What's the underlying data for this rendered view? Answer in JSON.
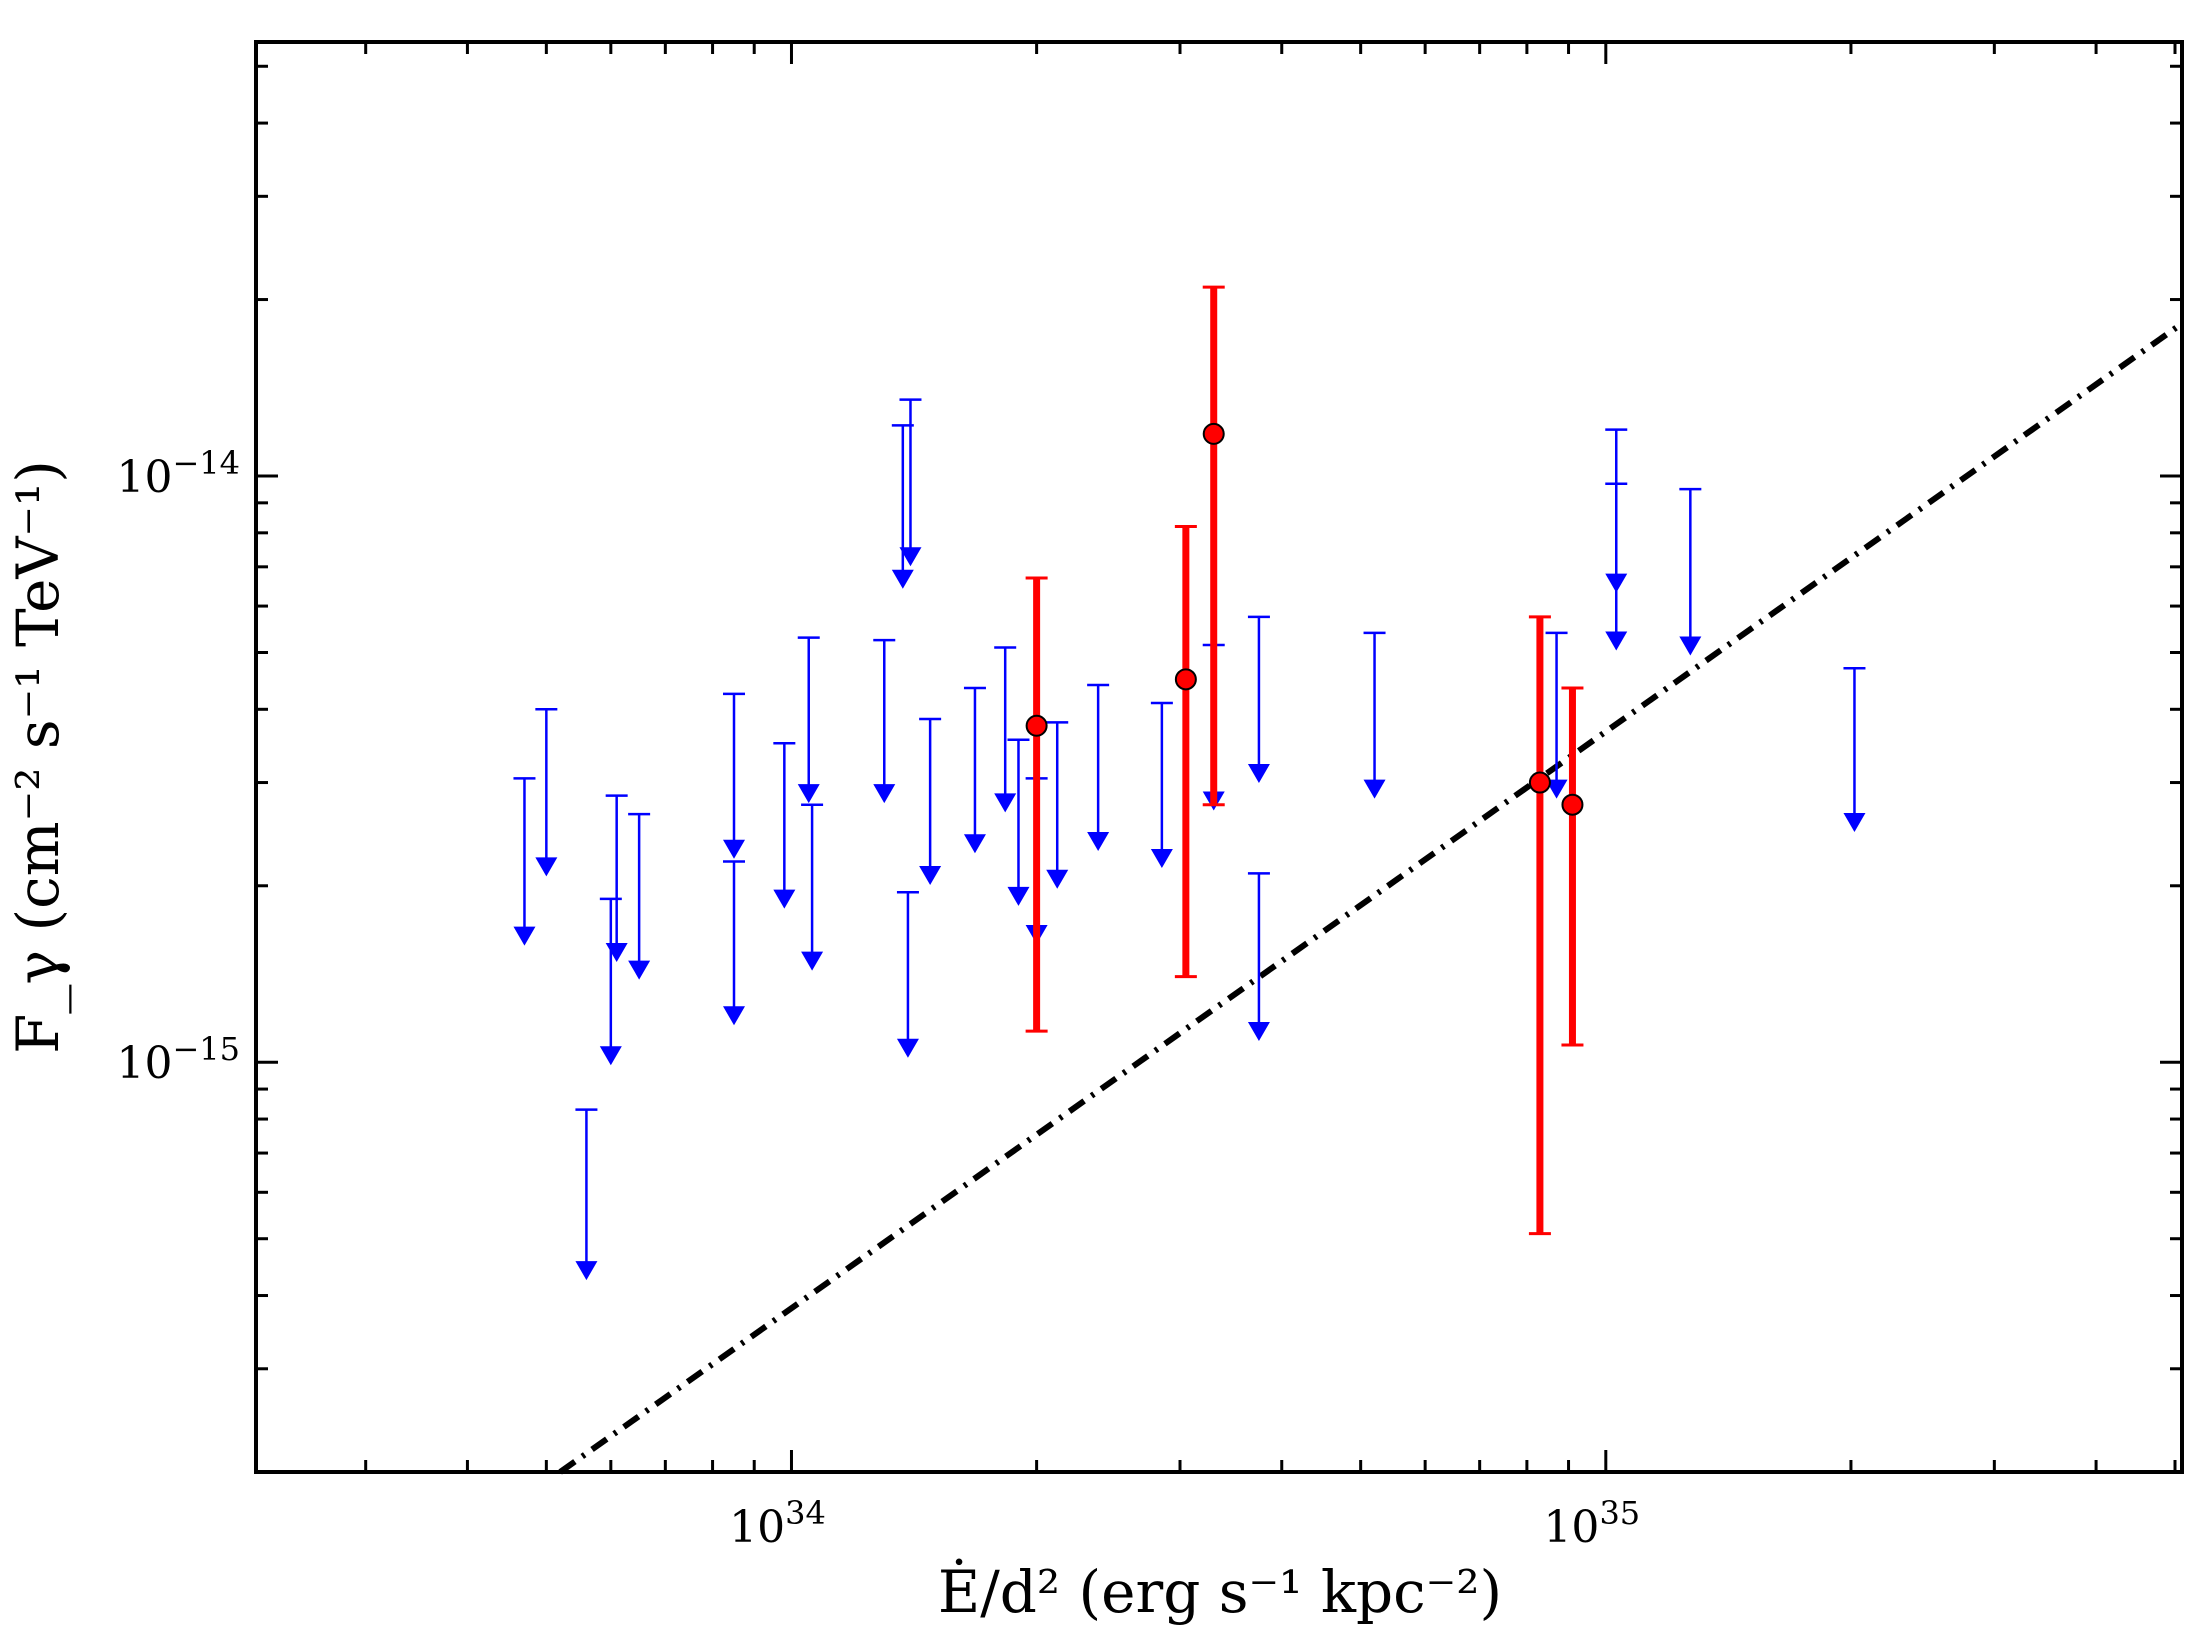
{
  "chart_data": {
    "type": "scatter",
    "title": "",
    "xlabel": "Ė/d² (erg s⁻¹ kpc⁻²)",
    "ylabel": "F_γ (cm⁻² s⁻¹ TeV⁻¹)",
    "xscale": "log",
    "yscale": "log",
    "xlim": [
      2.2e+33,
      5.1e+35
    ],
    "ylim": [
      2e-16,
      5.5e-14
    ],
    "x_tick_labels": [
      {
        "value": 1e+34,
        "base": "10",
        "exp": "34"
      },
      {
        "value": 1e+35,
        "base": "10",
        "exp": "35"
      }
    ],
    "y_tick_labels": [
      {
        "value": 1e-15,
        "base": "10",
        "exp": "−15"
      },
      {
        "value": 1e-14,
        "base": "10",
        "exp": "−14"
      }
    ],
    "grid": false,
    "legend": "none",
    "colors": {
      "upper_limits": "#0000ff",
      "detections": "#ff0000",
      "trend": "#000000"
    },
    "series": [
      {
        "kind": "upper_limits",
        "points": [
          {
            "x": 4.7e+33,
            "y_top": 3.05e-15,
            "y_arrow": 1.6e-15
          },
          {
            "x": 5e+33,
            "y_top": 4e-15,
            "y_arrow": 2.1e-15
          },
          {
            "x": 5.6e+33,
            "y_top": 8.3e-16,
            "y_arrow": 4.3e-16
          },
          {
            "x": 6e+33,
            "y_top": 1.9e-15,
            "y_arrow": 1e-15
          },
          {
            "x": 6.1e+33,
            "y_top": 2.85e-15,
            "y_arrow": 1.5e-15
          },
          {
            "x": 6.5e+33,
            "y_top": 2.65e-15,
            "y_arrow": 1.4e-15
          },
          {
            "x": 8.5e+33,
            "y_top": 4.25e-15,
            "y_arrow": 2.25e-15
          },
          {
            "x": 8.5e+33,
            "y_top": 2.2e-15,
            "y_arrow": 1.17e-15
          },
          {
            "x": 9.8e+33,
            "y_top": 3.5e-15,
            "y_arrow": 1.85e-15
          },
          {
            "x": 1.05e+34,
            "y_top": 5.3e-15,
            "y_arrow": 2.8e-15
          },
          {
            "x": 1.06e+34,
            "y_top": 2.75e-15,
            "y_arrow": 1.45e-15
          },
          {
            "x": 1.3e+34,
            "y_top": 5.25e-15,
            "y_arrow": 2.8e-15
          },
          {
            "x": 1.37e+34,
            "y_top": 1.22e-14,
            "y_arrow": 6.5e-15
          },
          {
            "x": 1.4e+34,
            "y_top": 1.35e-14,
            "y_arrow": 7.1e-15
          },
          {
            "x": 1.39e+34,
            "y_top": 1.95e-15,
            "y_arrow": 1.03e-15
          },
          {
            "x": 1.48e+34,
            "y_top": 3.85e-15,
            "y_arrow": 2.03e-15
          },
          {
            "x": 1.68e+34,
            "y_top": 4.35e-15,
            "y_arrow": 2.3e-15
          },
          {
            "x": 1.83e+34,
            "y_top": 5.1e-15,
            "y_arrow": 2.7e-15
          },
          {
            "x": 1.9e+34,
            "y_top": 3.55e-15,
            "y_arrow": 1.87e-15
          },
          {
            "x": 2e+34,
            "y_top": 3.05e-15,
            "y_arrow": 1.61e-15
          },
          {
            "x": 2.12e+34,
            "y_top": 3.8e-15,
            "y_arrow": 2e-15
          },
          {
            "x": 2.38e+34,
            "y_top": 4.4e-15,
            "y_arrow": 2.32e-15
          },
          {
            "x": 2.85e+34,
            "y_top": 4.1e-15,
            "y_arrow": 2.17e-15
          },
          {
            "x": 3.3e+34,
            "y_top": 5.15e-15,
            "y_arrow": 2.72e-15
          },
          {
            "x": 3.75e+34,
            "y_top": 5.75e-15,
            "y_arrow": 3.03e-15
          },
          {
            "x": 3.75e+34,
            "y_top": 2.1e-15,
            "y_arrow": 1.1e-15
          },
          {
            "x": 5.2e+34,
            "y_top": 5.4e-15,
            "y_arrow": 2.85e-15
          },
          {
            "x": 8.7e+34,
            "y_top": 5.4e-15,
            "y_arrow": 2.85e-15
          },
          {
            "x": 1.03e+35,
            "y_top": 1.2e-14,
            "y_arrow": 6.4e-15
          },
          {
            "x": 1.03e+35,
            "y_top": 9.7e-15,
            "y_arrow": 5.1e-15
          },
          {
            "x": 1.27e+35,
            "y_top": 9.5e-15,
            "y_arrow": 5e-15
          },
          {
            "x": 2.02e+35,
            "y_top": 4.7e-15,
            "y_arrow": 2.5e-15
          }
        ]
      },
      {
        "kind": "detections",
        "points": [
          {
            "x": 2e+34,
            "y": 3.75e-15,
            "y_low": 1.13e-15,
            "y_high": 6.7e-15
          },
          {
            "x": 3.05e+34,
            "y": 4.5e-15,
            "y_low": 1.4e-15,
            "y_high": 8.2e-15
          },
          {
            "x": 3.3e+34,
            "y": 1.18e-14,
            "y_low": 2.75e-15,
            "y_high": 2.1e-14
          },
          {
            "x": 8.3e+34,
            "y": 3e-15,
            "y_low": 5.1e-16,
            "y_high": 5.75e-15
          },
          {
            "x": 9.1e+34,
            "y": 2.75e-15,
            "y_low": 1.07e-15,
            "y_high": 4.35e-15
          }
        ]
      },
      {
        "kind": "trend_line",
        "style": "dash-dot",
        "points": [
          {
            "x": 5.2e+33,
            "y": 2e-16
          },
          {
            "x": 5.1e+35,
            "y": 1.82e-14
          }
        ]
      }
    ]
  }
}
